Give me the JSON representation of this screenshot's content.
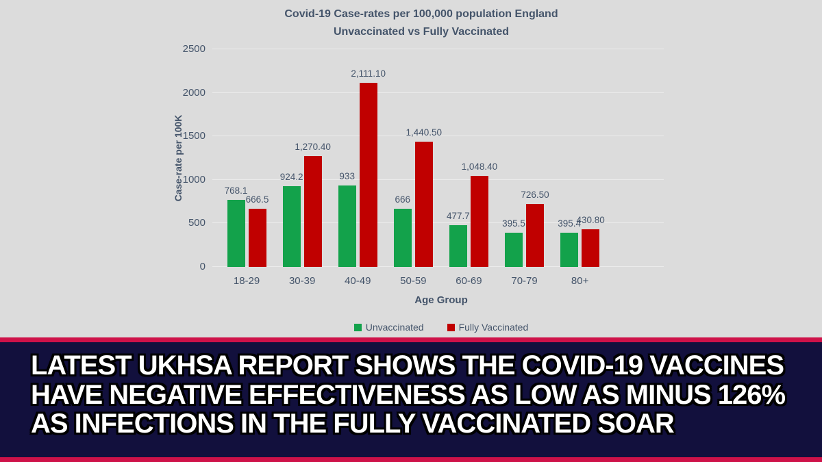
{
  "chart": {
    "title_line1": "Covid-19 Case-rates per 100,000 population England",
    "title_line2": "Unvaccinated vs Fully Vaccinated",
    "y_axis_label": "Case-rate per 100K",
    "x_axis_label": "Age Group"
  },
  "chart_data": {
    "type": "bar",
    "title": "Covid-19 Case-rates per 100,000 population England",
    "subtitle": "Unvaccinated vs Fully Vaccinated",
    "categories": [
      "18-29",
      "30-39",
      "40-49",
      "50-59",
      "60-69",
      "70-79",
      "80+"
    ],
    "series": [
      {
        "name": "Unvaccinated",
        "color": "#13a24b",
        "values": [
          768.1,
          924.2,
          933,
          666,
          477.7,
          395.5,
          395.4
        ],
        "labels": [
          "768.1",
          "924.2",
          "933",
          "666",
          "477.7",
          "395.5",
          "395.4"
        ]
      },
      {
        "name": "Fully Vaccinated",
        "color": "#c00000",
        "values": [
          666.5,
          1270.4,
          2111.1,
          1440.5,
          1048.4,
          726.5,
          430.8
        ],
        "labels": [
          "666.5",
          "1,270.40",
          "2,111.10",
          "1,440.50",
          "1,048.40",
          "726.50",
          "430.80"
        ]
      }
    ],
    "xlabel": "Age Group",
    "ylabel": "Case-rate per 100K",
    "ylim": [
      0,
      2500
    ],
    "y_ticks": [
      0,
      500,
      1000,
      1500,
      2000,
      2500
    ],
    "grid": true,
    "legend_position": "bottom"
  },
  "banner": {
    "lines": [
      "LATEST UKHSA REPORT SHOWS THE COVID-19 VACCINES",
      "HAVE NEGATIVE EFFECTIVENESS AS LOW AS MINUS 126%",
      "AS INFECTIONS IN THE FULLY VACCINATED SOAR"
    ]
  },
  "colors": {
    "panel_bg": "#dcdcdc",
    "unvaccinated_green": "#13a24b",
    "fully_vaccinated_red": "#c00000",
    "chart_text": "#44546a",
    "gridline": "#ececec",
    "banner_bg": "#12103d",
    "banner_text": "#ffffff",
    "stripe_crimson": "#ce1249"
  }
}
